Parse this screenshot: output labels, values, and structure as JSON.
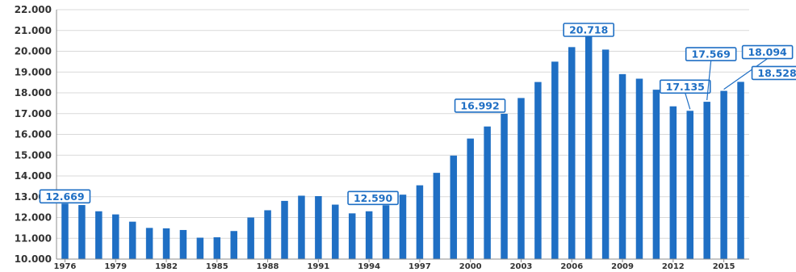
{
  "chart_data": {
    "type": "bar",
    "title": "",
    "xlabel": "",
    "ylabel": "",
    "ylim": [
      10000,
      22000
    ],
    "ytick_values": [
      10000,
      11000,
      12000,
      13000,
      14000,
      15000,
      16000,
      17000,
      18000,
      19000,
      20000,
      21000,
      22000
    ],
    "ytick_labels": [
      "10.000",
      "11.000",
      "12.000",
      "13.000",
      "14.000",
      "15.000",
      "16.000",
      "17.000",
      "18.000",
      "19.000",
      "20.000",
      "21.000",
      "22.000"
    ],
    "grid": true,
    "legend": "none",
    "color": "#1f6fc4",
    "categories": [
      "1976",
      "1977",
      "1978",
      "1979",
      "1980",
      "1981",
      "1982",
      "1983",
      "1984",
      "1985",
      "1986",
      "1987",
      "1988",
      "1989",
      "1990",
      "1991",
      "1992",
      "1993",
      "1994",
      "1995",
      "1996",
      "1997",
      "1998",
      "1999",
      "2000",
      "2001",
      "2002",
      "2003",
      "2004",
      "2005",
      "2006",
      "2007",
      "2008",
      "2009",
      "2010",
      "2011",
      "2012",
      "2013",
      "2014",
      "2015",
      "2016"
    ],
    "xtick_labels": [
      "1976",
      "1979",
      "1982",
      "1985",
      "1988",
      "1991",
      "1994",
      "1997",
      "2000",
      "2003",
      "2006",
      "2009",
      "2012",
      "2015"
    ],
    "values": [
      12669,
      12600,
      12300,
      12150,
      11800,
      11500,
      11480,
      11400,
      11030,
      11050,
      11350,
      12000,
      12350,
      12800,
      13050,
      13030,
      12620,
      12200,
      12300,
      12590,
      13100,
      13550,
      14150,
      14980,
      15800,
      16380,
      16992,
      17750,
      18520,
      19500,
      20200,
      20718,
      20080,
      18900,
      18680,
      18150,
      17350,
      17135,
      17569,
      18094,
      18528
    ],
    "annotations": [
      {
        "category": "1976",
        "label": "12.669"
      },
      {
        "category": "1995",
        "label": "12.590"
      },
      {
        "category": "2002",
        "label": "16.992"
      },
      {
        "category": "2007",
        "label": "20.718"
      },
      {
        "category": "2013",
        "label": "17.135"
      },
      {
        "category": "2014",
        "label": "17.569"
      },
      {
        "category": "2015",
        "label": "18.094"
      },
      {
        "category": "2016",
        "label": "18.528"
      }
    ]
  }
}
